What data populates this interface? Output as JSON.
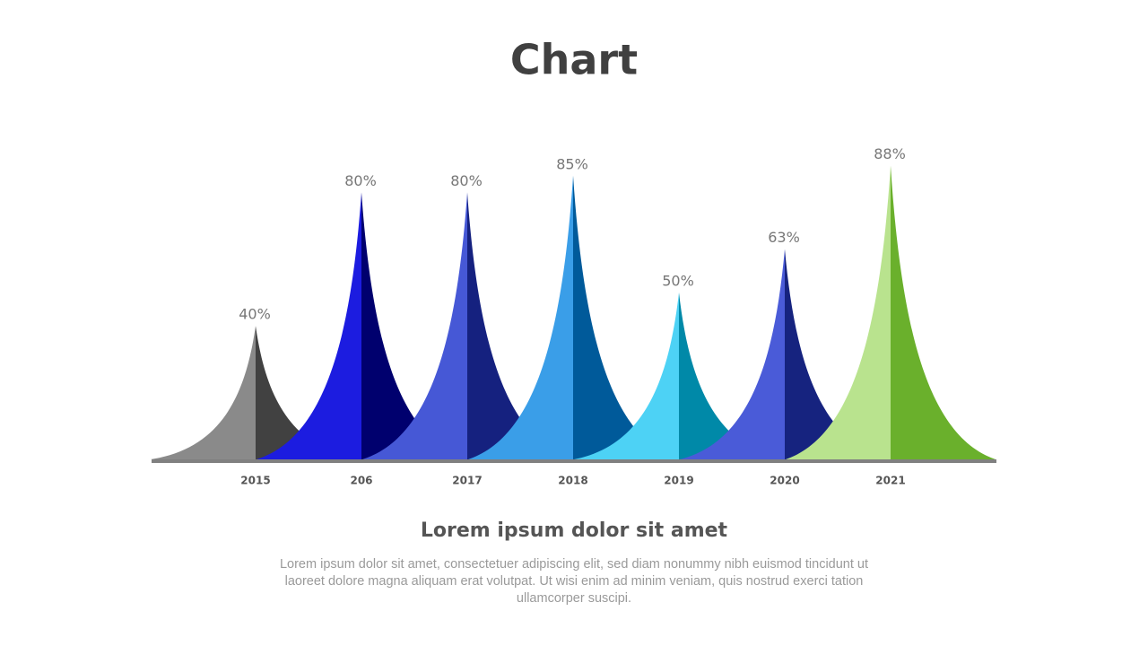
{
  "chart_data": {
    "type": "peak",
    "title": "Chart",
    "categories": [
      "2015",
      "206",
      "2017",
      "2018",
      "2019",
      "2020",
      "2021"
    ],
    "values": [
      40,
      80,
      80,
      85,
      50,
      63,
      88
    ],
    "value_labels": [
      "40%",
      "80%",
      "80%",
      "85%",
      "50%",
      "63%",
      "88%"
    ],
    "colors": [
      "#8a8a8a",
      "#1c1ce0",
      "#4658d6",
      "#3a9ee8",
      "#4dd2f5",
      "#4a5bd8",
      "#b9e38e"
    ],
    "shade_colors": [
      "#414141",
      "#00006e",
      "#15217f",
      "#005a9a",
      "#0089a8",
      "#16237f",
      "#6ab02c"
    ],
    "subtitle": "Lorem ipsum dolor sit amet",
    "text": "Lorem ipsum dolor sit amet, consectetuer adipiscing elit, sed diam nonummy nibh euismod tincidunt ut laoreet dolore magna aliquam erat volutpat. Ut wisi enim ad minim veniam, quis nostrud exerci tation ullamcorper suscipi."
  }
}
